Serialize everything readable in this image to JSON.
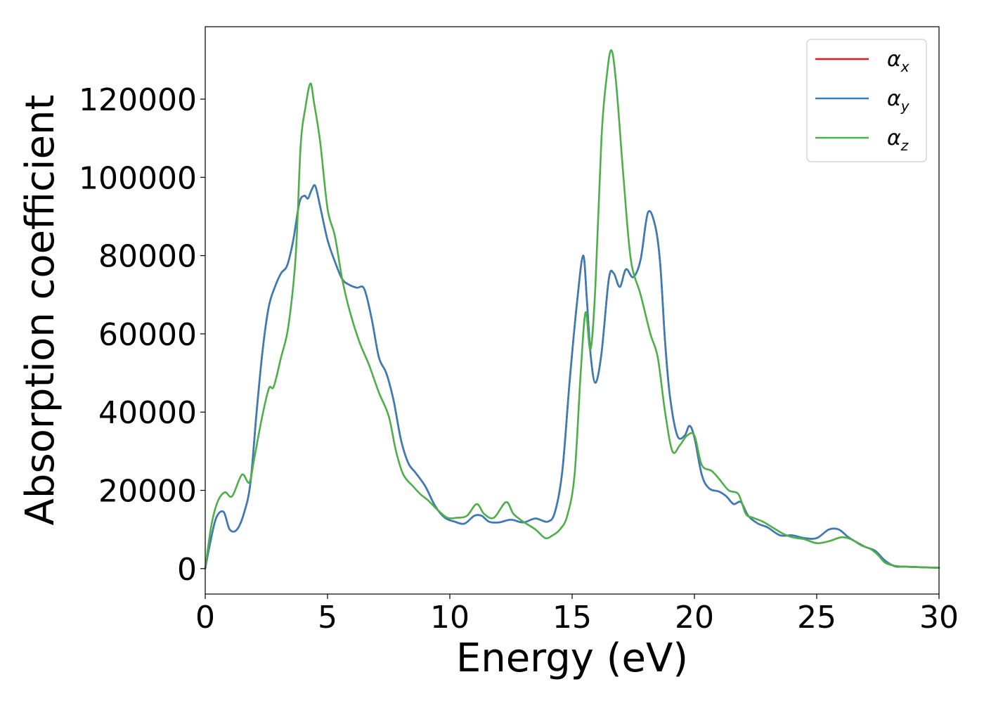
{
  "chart_data": {
    "type": "line",
    "title": "",
    "xlabel": "Energy (eV)",
    "ylabel": "Absorption coefficient",
    "xlim": [
      0,
      30
    ],
    "ylim": [
      -6500,
      138500
    ],
    "xticks": [
      0,
      5,
      10,
      15,
      20,
      25,
      30
    ],
    "yticks": [
      0,
      20000,
      40000,
      60000,
      80000,
      100000,
      120000
    ],
    "grid": false,
    "legend_position": "top-right",
    "series": [
      {
        "name": "α",
        "subscript": "x",
        "color": "#e41a1c",
        "x": [
          0,
          0.2,
          0.45,
          0.75,
          1.0,
          1.3,
          1.6,
          1.85,
          2.1,
          2.35,
          2.6,
          2.85,
          3.1,
          3.35,
          3.6,
          3.85,
          4.05,
          4.2,
          4.35,
          4.5,
          4.7,
          5.0,
          5.3,
          5.6,
          5.9,
          6.2,
          6.5,
          6.8,
          7.1,
          7.4,
          7.7,
          8.0,
          8.3,
          8.6,
          9.0,
          9.4,
          9.8,
          10.2,
          10.6,
          11.0,
          11.3,
          11.6,
          12.0,
          12.5,
          13.0,
          13.5,
          14.0,
          14.3,
          14.6,
          14.9,
          15.2,
          15.45,
          15.6,
          15.75,
          15.95,
          16.2,
          16.5,
          16.7,
          16.95,
          17.2,
          17.5,
          17.8,
          18.1,
          18.4,
          18.6,
          18.8,
          19.0,
          19.3,
          19.6,
          19.8,
          20.0,
          20.3,
          20.6,
          21.0,
          21.3,
          21.6,
          21.9,
          22.2,
          22.6,
          23.0,
          23.5,
          24.0,
          24.5,
          25.0,
          25.5,
          25.9,
          26.3,
          26.7,
          27.0,
          27.4,
          27.8,
          28.2,
          28.6,
          29.0,
          29.5,
          30.0
        ],
        "y": [
          0,
          6500,
          13000,
          14500,
          10000,
          10000,
          14500,
          22000,
          40000,
          56000,
          67000,
          72000,
          75500,
          77500,
          84000,
          93500,
          95300,
          94600,
          96800,
          97800,
          92500,
          84000,
          78500,
          74000,
          72500,
          71800,
          71500,
          64000,
          54000,
          50000,
          43000,
          33000,
          27000,
          24500,
          21000,
          16000,
          13000,
          12000,
          11500,
          13500,
          13500,
          12000,
          11800,
          12500,
          11800,
          12800,
          12000,
          14500,
          25000,
          48000,
          68000,
          80000,
          69000,
          55000,
          47500,
          55000,
          74000,
          75500,
          72000,
          76500,
          74500,
          79000,
          91000,
          87500,
          78000,
          58000,
          44000,
          34000,
          34000,
          36500,
          33500,
          24000,
          20500,
          19700,
          18500,
          16500,
          17000,
          13500,
          11500,
          10500,
          8500,
          8500,
          7800,
          7800,
          10000,
          10000,
          8000,
          6500,
          5500,
          4500,
          2000,
          600,
          500,
          400,
          300,
          200
        ]
      },
      {
        "name": "α",
        "subscript": "y",
        "color": "#377eb8",
        "x": [
          0,
          0.2,
          0.45,
          0.75,
          1.0,
          1.3,
          1.6,
          1.85,
          2.1,
          2.35,
          2.6,
          2.85,
          3.1,
          3.35,
          3.6,
          3.85,
          4.05,
          4.2,
          4.35,
          4.5,
          4.7,
          5.0,
          5.3,
          5.6,
          5.9,
          6.2,
          6.5,
          6.8,
          7.1,
          7.4,
          7.7,
          8.0,
          8.3,
          8.6,
          9.0,
          9.4,
          9.8,
          10.2,
          10.6,
          11.0,
          11.3,
          11.6,
          12.0,
          12.5,
          13.0,
          13.5,
          14.0,
          14.3,
          14.6,
          14.9,
          15.2,
          15.45,
          15.6,
          15.75,
          15.95,
          16.2,
          16.5,
          16.7,
          16.95,
          17.2,
          17.5,
          17.8,
          18.1,
          18.4,
          18.6,
          18.8,
          19.0,
          19.3,
          19.6,
          19.8,
          20.0,
          20.3,
          20.6,
          21.0,
          21.3,
          21.6,
          21.9,
          22.2,
          22.6,
          23.0,
          23.5,
          24.0,
          24.5,
          25.0,
          25.5,
          25.9,
          26.3,
          26.7,
          27.0,
          27.4,
          27.8,
          28.2,
          28.6,
          29.0,
          29.5,
          30.0
        ],
        "y": [
          0,
          6500,
          13000,
          14500,
          10000,
          10000,
          14500,
          22000,
          40000,
          56000,
          67000,
          72000,
          75500,
          77500,
          84000,
          93500,
          95300,
          94600,
          96800,
          97800,
          92500,
          84000,
          78500,
          74000,
          72500,
          71800,
          71500,
          64000,
          54000,
          50000,
          43000,
          33000,
          27000,
          24500,
          21000,
          16000,
          13000,
          12000,
          11500,
          13500,
          13500,
          12000,
          11800,
          12500,
          11800,
          12800,
          12000,
          14500,
          25000,
          48000,
          68000,
          80000,
          69000,
          55000,
          47500,
          55000,
          74000,
          75500,
          72000,
          76500,
          74500,
          79000,
          91000,
          87500,
          78000,
          58000,
          44000,
          34000,
          34000,
          36500,
          33500,
          24000,
          20500,
          19700,
          18500,
          16500,
          17000,
          13500,
          11500,
          10500,
          8500,
          8500,
          7800,
          7800,
          10000,
          10000,
          8000,
          6500,
          5500,
          4500,
          2000,
          600,
          500,
          400,
          300,
          200
        ]
      },
      {
        "name": "α",
        "subscript": "z",
        "color": "#4daf4a",
        "x": [
          0,
          0.25,
          0.5,
          0.8,
          1.1,
          1.5,
          1.8,
          2.0,
          2.3,
          2.6,
          2.8,
          3.1,
          3.4,
          3.7,
          3.9,
          4.1,
          4.3,
          4.45,
          4.7,
          5.0,
          5.3,
          5.6,
          5.9,
          6.3,
          6.7,
          7.1,
          7.5,
          7.8,
          8.1,
          8.5,
          8.8,
          9.1,
          9.5,
          9.9,
          10.3,
          10.7,
          11.1,
          11.4,
          11.8,
          12.3,
          12.6,
          13.0,
          13.5,
          13.9,
          14.2,
          14.5,
          14.8,
          15.1,
          15.35,
          15.55,
          15.75,
          15.95,
          16.2,
          16.4,
          16.6,
          16.8,
          17.1,
          17.4,
          17.8,
          18.2,
          18.5,
          18.8,
          19.1,
          19.4,
          19.7,
          20.0,
          20.3,
          20.7,
          21.0,
          21.4,
          21.8,
          22.1,
          22.4,
          22.8,
          23.2,
          23.6,
          24.0,
          24.5,
          25.0,
          25.5,
          26.0,
          26.4,
          26.8,
          27.2,
          27.5,
          27.8,
          28.2,
          28.6,
          29.0,
          29.5,
          30.0
        ],
        "y": [
          0,
          11000,
          17000,
          19500,
          18500,
          24000,
          22000,
          28000,
          38000,
          46000,
          46500,
          54000,
          62000,
          80000,
          108000,
          118000,
          124000,
          119000,
          109000,
          92000,
          85000,
          74000,
          66000,
          58000,
          52000,
          45000,
          39000,
          30000,
          24000,
          21000,
          19000,
          17500,
          15000,
          13000,
          13000,
          13500,
          16500,
          14000,
          13000,
          17000,
          14000,
          12000,
          10000,
          7800,
          8500,
          10000,
          13500,
          24000,
          50000,
          65500,
          56000,
          72000,
          110000,
          125000,
          132500,
          124000,
          100000,
          79000,
          70000,
          60000,
          54000,
          40000,
          30000,
          31500,
          34000,
          34000,
          26500,
          25000,
          23000,
          20000,
          19000,
          14000,
          13000,
          12000,
          10500,
          9000,
          8000,
          7500,
          6500,
          7000,
          8000,
          7500,
          6000,
          5000,
          3500,
          1500,
          700,
          500,
          400,
          300,
          200
        ]
      }
    ]
  }
}
